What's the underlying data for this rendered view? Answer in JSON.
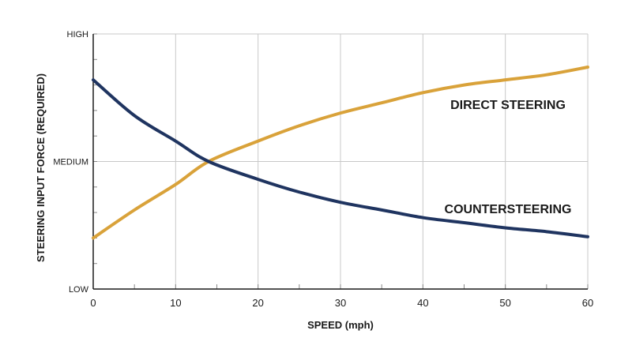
{
  "chart_data": {
    "type": "line",
    "xlabel": "SPEED (mph)",
    "ylabel": "STEERING INPUT FORCE (REQUIRED)",
    "xlim": [
      0,
      60
    ],
    "ylim": [
      0,
      100
    ],
    "x_ticks": [
      0,
      10,
      20,
      30,
      40,
      50,
      60
    ],
    "y_ticks": [
      {
        "value": 0,
        "label": "LOW"
      },
      {
        "value": 50,
        "label": "MEDIUM"
      },
      {
        "value": 100,
        "label": "HIGH"
      }
    ],
    "grid": true,
    "series": [
      {
        "name": "DIRECT STEERING",
        "color": "#d9a23a",
        "x": [
          0,
          5,
          10,
          14,
          20,
          25,
          30,
          35,
          40,
          45,
          50,
          55,
          60
        ],
        "y": [
          20,
          31,
          41,
          50,
          58,
          64,
          69,
          73,
          77,
          80,
          82,
          84,
          87
        ]
      },
      {
        "name": "COUNTERSTEERING",
        "color": "#1f3460",
        "x": [
          0,
          5,
          10,
          14,
          20,
          25,
          30,
          35,
          40,
          45,
          50,
          55,
          60
        ],
        "y": [
          82,
          68,
          58,
          50,
          43,
          38,
          34,
          31,
          28,
          26,
          24,
          22.5,
          20.5
        ]
      }
    ]
  }
}
